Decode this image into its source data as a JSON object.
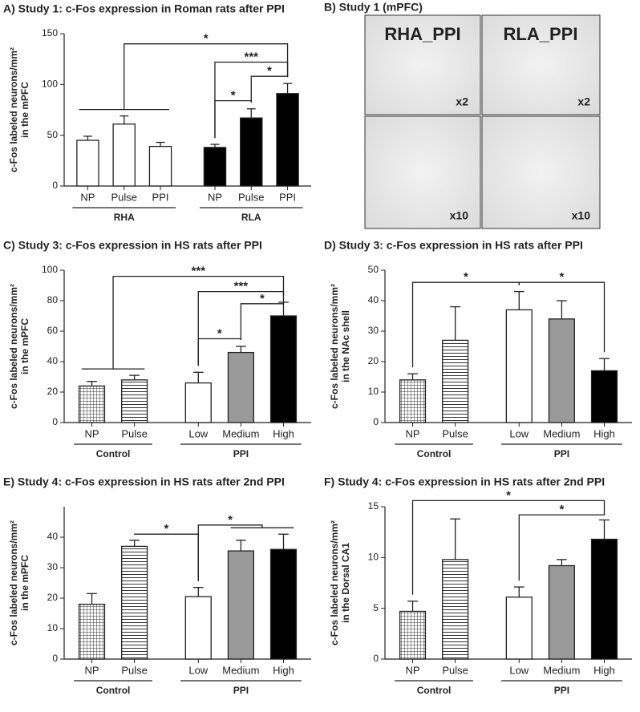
{
  "micrograph": {
    "title": "B) Study 1 (mPFC)",
    "columns": [
      "RHA_PPI",
      "RLA_PPI"
    ],
    "magnifications": [
      "x2",
      "x10"
    ]
  },
  "chart_data": [
    {
      "type": "bar",
      "title": "A) Study 1: c-Fos expression in Roman rats after PPI",
      "ylabel": [
        "c-Fos labeled neurons/mm²",
        "in the mPFC"
      ],
      "categories": [
        "NP",
        "Pulse",
        "PPI",
        "NP",
        "Pulse",
        "PPI"
      ],
      "values": [
        45,
        61,
        39,
        38,
        67,
        91
      ],
      "errors": [
        4,
        8,
        4,
        3,
        9,
        10
      ],
      "fills": [
        "#ffffff",
        "#ffffff",
        "#ffffff",
        "#000000",
        "#000000",
        "#000000"
      ],
      "groups": [
        {
          "label": "RHA",
          "range": [
            0,
            2
          ]
        },
        {
          "label": "RLA",
          "range": [
            3,
            5
          ]
        }
      ],
      "ylim": [
        0,
        150
      ],
      "yticks": [
        0,
        50,
        100,
        150
      ],
      "brackets": [
        {
          "label": "*",
          "from": [
            0,
            2
          ],
          "to": [
            5,
            5
          ],
          "y": 140
        },
        {
          "label": "***",
          "from": [
            3,
            3
          ],
          "to": [
            5,
            5
          ],
          "y": 122
        },
        {
          "label": "*",
          "from": [
            4,
            4
          ],
          "to": [
            5,
            5
          ],
          "y": 108
        },
        {
          "label": "*",
          "from": [
            3,
            3
          ],
          "to": [
            4,
            4
          ],
          "y": 84
        }
      ]
    },
    {
      "type": "bar",
      "title": "C) Study 3: c-Fos expression in HS rats after PPI",
      "ylabel": [
        "c-Fos labeled neurons/mm²",
        "in the mPFC"
      ],
      "categories": [
        "NP",
        "Pulse",
        "Low",
        "Medium",
        "High"
      ],
      "values": [
        24,
        28,
        26,
        46,
        70
      ],
      "errors": [
        3,
        3,
        7,
        4,
        9
      ],
      "fills": [
        "crosshatch",
        "hstripes",
        "#ffffff",
        "#999999",
        "#000000"
      ],
      "groups": [
        {
          "label": "Control",
          "range": [
            0,
            1
          ]
        },
        {
          "label": "PPI",
          "range": [
            2,
            4
          ]
        }
      ],
      "ylim": [
        0,
        100
      ],
      "yticks": [
        0,
        20,
        40,
        60,
        80,
        100
      ],
      "brackets": [
        {
          "label": "***",
          "from": [
            0,
            1
          ],
          "to": [
            4,
            4
          ],
          "y": 96
        },
        {
          "label": "***",
          "from": [
            2,
            2
          ],
          "to": [
            4,
            4
          ],
          "y": 86
        },
        {
          "label": "*",
          "from": [
            3,
            3
          ],
          "to": [
            4,
            4
          ],
          "y": 78
        },
        {
          "label": "*",
          "from": [
            2,
            2
          ],
          "to": [
            3,
            3
          ],
          "y": 55
        }
      ]
    },
    {
      "type": "bar",
      "title": "D) Study 3: c-Fos expression in HS rats after PPI",
      "ylabel": [
        "c-Fos labeled neurons/mm²",
        "in the NAc shell"
      ],
      "categories": [
        "NP",
        "Pulse",
        "Low",
        "Medium",
        "High"
      ],
      "values": [
        14,
        27,
        37,
        34,
        17
      ],
      "errors": [
        2,
        11,
        6,
        6,
        4
      ],
      "fills": [
        "crosshatch",
        "hstripes",
        "#ffffff",
        "#999999",
        "#000000"
      ],
      "groups": [
        {
          "label": "Control",
          "range": [
            0,
            1
          ]
        },
        {
          "label": "PPI",
          "range": [
            2,
            4
          ]
        }
      ],
      "ylim": [
        0,
        50
      ],
      "yticks": [
        0,
        10,
        20,
        30,
        40,
        50
      ],
      "brackets": [
        {
          "label": "*",
          "from": [
            0,
            0
          ],
          "to": [
            2,
            2
          ],
          "y": 46
        },
        {
          "label": "*",
          "from": [
            2,
            2
          ],
          "to": [
            4,
            4
          ],
          "y": 46
        }
      ]
    },
    {
      "type": "bar",
      "title": "E) Study 4: c-Fos expression in HS rats after 2nd PPI",
      "ylabel": [
        "c-Fos labeled neurons/mm²",
        "in the mPFC"
      ],
      "categories": [
        "NP",
        "Pulse",
        "Low",
        "Medium",
        "High"
      ],
      "values": [
        18,
        37,
        20.5,
        35.5,
        36
      ],
      "errors": [
        3.5,
        2,
        3,
        3.5,
        5
      ],
      "fills": [
        "crosshatch",
        "hstripes",
        "#ffffff",
        "#999999",
        "#000000"
      ],
      "groups": [
        {
          "label": "Control",
          "range": [
            0,
            1
          ]
        },
        {
          "label": "PPI",
          "range": [
            2,
            4
          ]
        }
      ],
      "ylim": [
        0,
        50
      ],
      "yticks": [
        0,
        10,
        20,
        30,
        40
      ],
      "brackets": [
        {
          "label": "*",
          "from": [
            1,
            1
          ],
          "to": [
            2,
            2
          ],
          "y": 41
        },
        {
          "label": "*",
          "from": [
            2,
            2
          ],
          "to": [
            3,
            4
          ],
          "y": 44
        }
      ]
    },
    {
      "type": "bar",
      "title": "F) Study 4: c-Fos expression in HS rats after 2nd PPI",
      "ylabel": [
        "c-Fos labeled neurons/mm²",
        "in the Dorsal CA1"
      ],
      "categories": [
        "NP",
        "Pulse",
        "Low",
        "Medium",
        "High"
      ],
      "values": [
        4.7,
        9.8,
        6.1,
        9.2,
        11.8
      ],
      "errors": [
        1,
        4,
        1,
        0.6,
        1.9
      ],
      "fills": [
        "crosshatch",
        "hstripes",
        "#ffffff",
        "#999999",
        "#000000"
      ],
      "groups": [
        {
          "label": "Control",
          "range": [
            0,
            1
          ]
        },
        {
          "label": "PPI",
          "range": [
            2,
            4
          ]
        }
      ],
      "ylim": [
        0,
        15
      ],
      "yticks": [
        0,
        5,
        10,
        15
      ],
      "brackets": [
        {
          "label": "*",
          "from": [
            0,
            0
          ],
          "to": [
            4,
            4
          ],
          "y": 15.6
        },
        {
          "label": "*",
          "from": [
            2,
            2
          ],
          "to": [
            4,
            4
          ],
          "y": 14.2
        }
      ]
    }
  ]
}
